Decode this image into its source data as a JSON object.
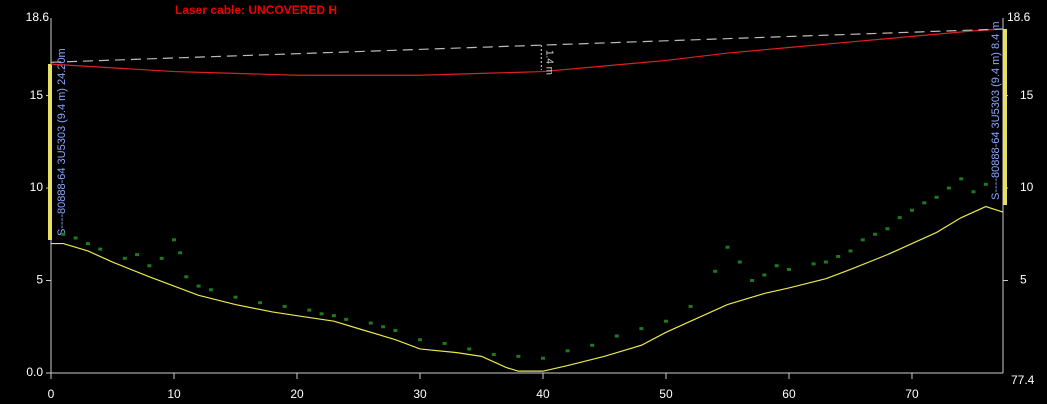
{
  "chart_data": {
    "type": "line",
    "title": "Laser cable: UNCOVERED H",
    "xlim": [
      0,
      77.4
    ],
    "ylim": [
      0,
      18.6
    ],
    "xticks": [
      0,
      10,
      20,
      30,
      40,
      50,
      60,
      70
    ],
    "yticks": [
      {
        "value": 0,
        "label": "0.0"
      },
      5,
      10,
      15
    ],
    "series": [
      {
        "color": "#e8e84a",
        "x": [
          0,
          1,
          3,
          5,
          8,
          10,
          12,
          15,
          18,
          20,
          23,
          25,
          28,
          30,
          33,
          35,
          37,
          38,
          40,
          42,
          45,
          48,
          50,
          52,
          55,
          58,
          60,
          63,
          65,
          68,
          70,
          72,
          74,
          76,
          77.4
        ],
        "values": [
          7.0,
          7.0,
          6.6,
          6.0,
          5.2,
          4.7,
          4.2,
          3.7,
          3.3,
          3.1,
          2.8,
          2.4,
          1.8,
          1.3,
          1.1,
          0.9,
          0.3,
          0.1,
          0.1,
          0.4,
          0.9,
          1.5,
          2.2,
          2.8,
          3.7,
          4.3,
          4.6,
          5.1,
          5.6,
          6.4,
          7.0,
          7.6,
          8.4,
          9.0,
          8.7
        ]
      },
      {
        "color": "#e02020",
        "x": [
          0,
          5,
          10,
          15,
          20,
          25,
          30,
          35,
          40,
          45,
          50,
          55,
          60,
          65,
          70,
          75,
          77.4
        ],
        "values": [
          16.7,
          16.5,
          16.3,
          16.2,
          16.1,
          16.1,
          16.1,
          16.2,
          16.3,
          16.6,
          16.9,
          17.3,
          17.6,
          17.9,
          18.2,
          18.5,
          18.6
        ]
      },
      {
        "color": "#bbbbbb",
        "dashed": true,
        "x": [
          0,
          77.4
        ],
        "values": [
          16.8,
          18.6
        ]
      },
      {
        "type": "scatter",
        "color": "#1f7a1f",
        "x": [
          1,
          2,
          3,
          4,
          6,
          7,
          8,
          9,
          10,
          10.5,
          11,
          12,
          13,
          15,
          17,
          19,
          21,
          22,
          23,
          24,
          26,
          27,
          28,
          30,
          32,
          34,
          36,
          38,
          40,
          42,
          44,
          46,
          48,
          50,
          52,
          54,
          55,
          56,
          57,
          58,
          59,
          60,
          62,
          63,
          64,
          65,
          66,
          67,
          68,
          69,
          70,
          71,
          72,
          73,
          74,
          75,
          76
        ],
        "values": [
          7.5,
          7.3,
          7.0,
          6.7,
          6.2,
          6.4,
          5.8,
          6.2,
          7.2,
          6.5,
          5.2,
          4.7,
          4.5,
          4.1,
          3.8,
          3.6,
          3.4,
          3.2,
          3.1,
          2.9,
          2.7,
          2.5,
          2.3,
          1.8,
          1.6,
          1.3,
          1.0,
          0.9,
          0.8,
          1.2,
          1.5,
          2.0,
          2.4,
          2.8,
          3.6,
          5.5,
          6.8,
          6.0,
          5.0,
          5.3,
          5.8,
          5.6,
          5.9,
          6.0,
          6.3,
          6.6,
          7.2,
          7.5,
          7.8,
          8.4,
          8.8,
          9.2,
          9.5,
          10.0,
          10.5,
          9.8,
          10.2
        ]
      }
    ],
    "annotations": [
      {
        "text": "1.4 m",
        "x": 41
      }
    ],
    "tower_labels": [
      "S----80888-64 3U5303 (9.4 m) 24.20m",
      "S----80888-64 3U5303 (9.4 m) 8.4 m"
    ]
  }
}
